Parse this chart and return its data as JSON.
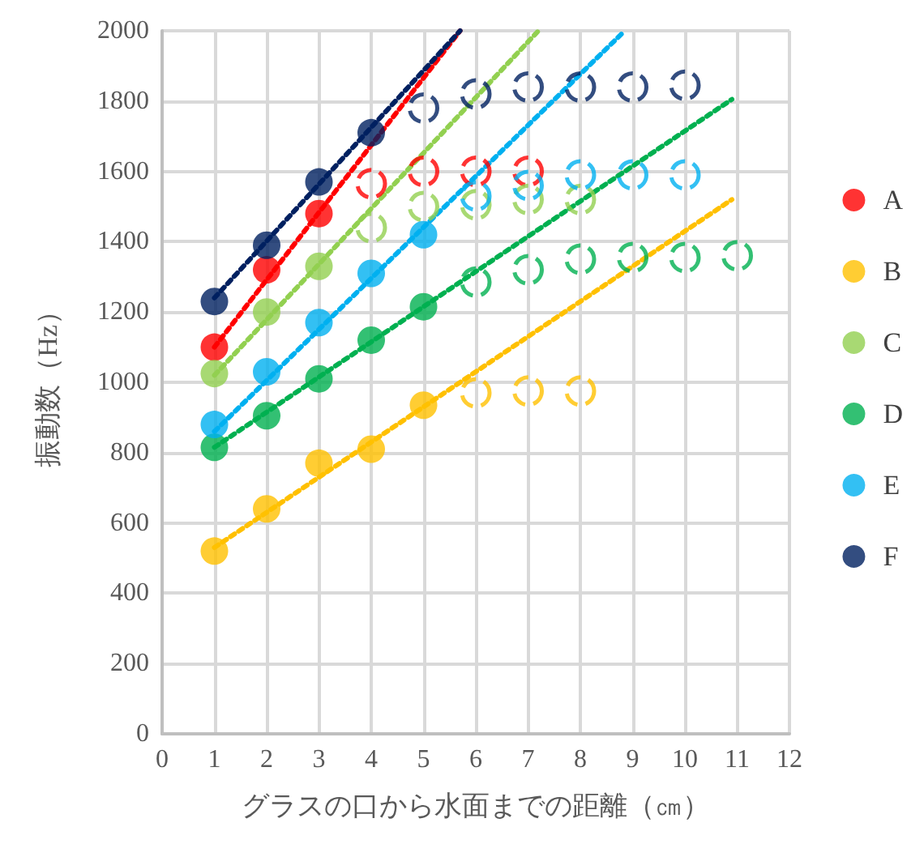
{
  "chart_data": {
    "type": "scatter",
    "xlabel": "グラスの口から水面までの距離（㎝）",
    "ylabel": "振動数（Hz）",
    "xlim": [
      0,
      12
    ],
    "xticks": [
      0,
      1,
      2,
      3,
      4,
      5,
      6,
      7,
      8,
      9,
      10,
      11,
      12
    ],
    "ylim": [
      0,
      2000
    ],
    "yticks": [
      0,
      200,
      400,
      600,
      800,
      1000,
      1200,
      1400,
      1600,
      1800,
      2000
    ],
    "grid": true,
    "legend": "right",
    "marker": "circle",
    "series": [
      {
        "name": "A",
        "color": "#ff0000",
        "x": [
          1,
          2,
          3
        ],
        "values": [
          1100,
          1320,
          1480
        ]
      },
      {
        "name": "B",
        "color": "#ffc000",
        "x": [
          1,
          2,
          3,
          4,
          5
        ],
        "values": [
          520,
          640,
          770,
          810,
          935
        ]
      },
      {
        "name": "C",
        "color": "#92d050",
        "x": [
          1,
          2,
          3
        ],
        "values": [
          1025,
          1200,
          1330
        ]
      },
      {
        "name": "D",
        "color": "#00b050",
        "x": [
          1,
          2,
          3,
          4,
          5
        ],
        "values": [
          815,
          905,
          1010,
          1120,
          1215
        ]
      },
      {
        "name": "E",
        "color": "#00b0f0",
        "x": [
          1,
          2,
          3,
          4,
          5
        ],
        "values": [
          880,
          1030,
          1170,
          1310,
          1420
        ]
      },
      {
        "name": "F",
        "color": "#002060",
        "x": [
          1,
          2,
          3,
          4
        ],
        "values": [
          1230,
          1390,
          1570,
          1710
        ]
      },
      {
        "color": "#ff0000",
        "line_style": "dashed",
        "x": [
          4,
          5,
          6,
          7
        ],
        "values": [
          1565,
          1600,
          1600,
          1600
        ]
      },
      {
        "color": "#ffc000",
        "line_style": "dashed",
        "x": [
          6,
          7,
          8
        ],
        "values": [
          970,
          975,
          975
        ]
      },
      {
        "color": "#92d050",
        "line_style": "dashed",
        "x": [
          4,
          5,
          6,
          7,
          8
        ],
        "values": [
          1440,
          1500,
          1505,
          1520,
          1520
        ]
      },
      {
        "color": "#00b050",
        "line_style": "dashed",
        "x": [
          6,
          7,
          8,
          9,
          10,
          11
        ],
        "values": [
          1285,
          1320,
          1350,
          1355,
          1355,
          1360
        ]
      },
      {
        "color": "#00b0f0",
        "line_style": "dashed",
        "x": [
          6,
          7,
          8,
          9,
          10
        ],
        "values": [
          1530,
          1560,
          1590,
          1590,
          1590
        ]
      },
      {
        "color": "#002060",
        "line_style": "dashed",
        "x": [
          5,
          6,
          7,
          8,
          9,
          10
        ],
        "values": [
          1780,
          1820,
          1840,
          1840,
          1840,
          1845
        ]
      },
      {
        "type": "line",
        "color": "#ff0000",
        "marker": "none",
        "line_style": "dotted",
        "x": [
          1,
          5.7
        ],
        "values": [
          1100,
          2000
        ]
      },
      {
        "type": "line",
        "color": "#ffc000",
        "marker": "none",
        "line_style": "dotted",
        "x": [
          1,
          10.9
        ],
        "values": [
          530,
          1520
        ]
      },
      {
        "type": "line",
        "color": "#92d050",
        "marker": "none",
        "line_style": "dotted",
        "x": [
          1,
          7.2
        ],
        "values": [
          1020,
          2000
        ]
      },
      {
        "type": "line",
        "color": "#00b050",
        "marker": "none",
        "line_style": "dotted",
        "x": [
          1,
          10.9
        ],
        "values": [
          815,
          1805
        ]
      },
      {
        "type": "line",
        "color": "#00b0f0",
        "marker": "none",
        "line_style": "dotted",
        "x": [
          1,
          8.85
        ],
        "values": [
          860,
          2000
        ]
      },
      {
        "type": "line",
        "color": "#002060",
        "marker": "none",
        "line_style": "dotted",
        "x": [
          1,
          5.7
        ],
        "values": [
          1240,
          2000
        ]
      }
    ]
  }
}
